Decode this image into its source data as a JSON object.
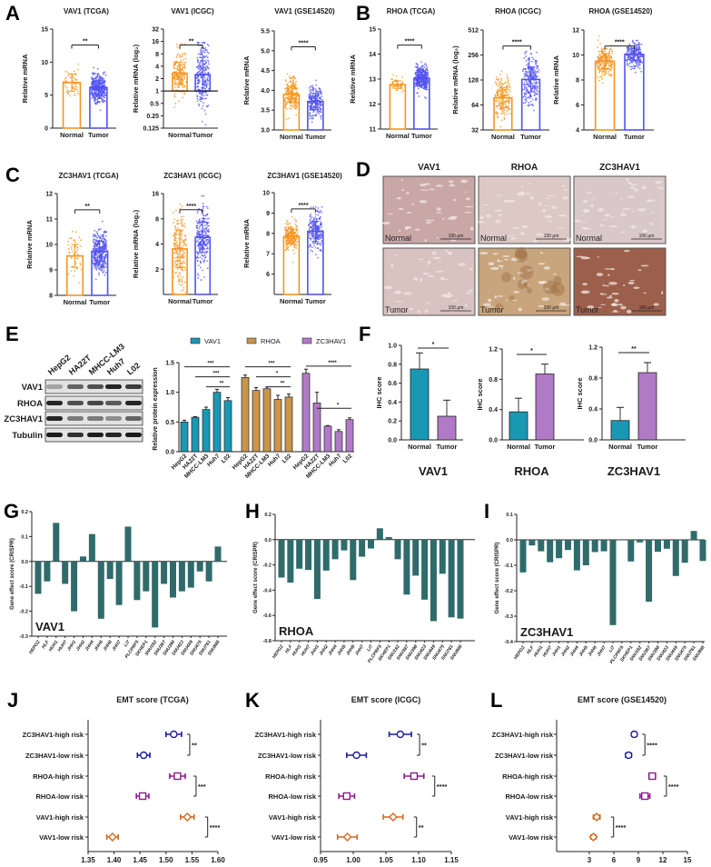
{
  "panels": {
    "A": "A",
    "B": "B",
    "C": "C",
    "D": "D",
    "E": "E",
    "F": "F",
    "G": "G",
    "H": "H",
    "I": "I",
    "J": "J",
    "K": "K",
    "L": "L"
  },
  "colors": {
    "normal": "#f7941d",
    "tumor": "#5252f2",
    "vav1": "#1a97b3",
    "rhoa": "#c8954b",
    "zc3hav1": "#b07ac6",
    "crispr": "#2f6b6b",
    "emt_zc3hav1": "#1c1c9c",
    "emt_rhoa": "#8e1b8e",
    "emt_vav1": "#d2691e"
  },
  "chart_data": [
    {
      "id": "A1",
      "type": "bar",
      "title": "VAV1 (TCGA)",
      "ylabel": "Relative mRNA",
      "scale": "linear",
      "ylim": [
        0,
        15
      ],
      "yticks": [
        "0",
        "5",
        "10",
        "15"
      ],
      "sig": "**",
      "groups": [
        {
          "label": "Normal",
          "mean": 6.9,
          "sd": 1.3,
          "range": [
            1.5,
            9.7
          ],
          "n": 50
        },
        {
          "label": "Tumor",
          "mean": 6.15,
          "sd": 1.1,
          "range": [
            2.7,
            10.5
          ],
          "n": 370
        }
      ]
    },
    {
      "id": "A2",
      "type": "bar",
      "title": "VAV1 (ICGC)",
      "ylabel": "Relative mRNA (log₂)",
      "scale": "log2",
      "ylim": [
        0.125,
        32
      ],
      "baseline": 1,
      "yticks": [
        "0.125",
        "0.25",
        "0.5",
        "1",
        "2",
        "4",
        "8",
        "16",
        "32"
      ],
      "sig": "**",
      "groups": [
        {
          "label": "Normal",
          "mean": 2.7,
          "sd": 0.9,
          "range": [
            0.35,
            14
          ],
          "n": 200
        },
        {
          "label": "Tumor",
          "mean": 2.5,
          "sd": 1.4,
          "range": [
            0.15,
            15
          ],
          "n": 240
        }
      ]
    },
    {
      "id": "A3",
      "type": "bar",
      "title": "VAV1 (GSE14520)",
      "ylabel": "Relative mRNA",
      "scale": "linear",
      "ylim": [
        3,
        5.5
      ],
      "yticks": [
        "3.0",
        "3.5",
        "4.0",
        "4.5",
        "5.0",
        "5.5"
      ],
      "sig": "****",
      "groups": [
        {
          "label": "Normal",
          "mean": 3.9,
          "sd": 0.2,
          "range": [
            3.15,
            4.7
          ],
          "n": 220
        },
        {
          "label": "Tumor",
          "mean": 3.72,
          "sd": 0.2,
          "range": [
            3.2,
            5.4
          ],
          "n": 225
        }
      ]
    },
    {
      "id": "B1",
      "type": "bar",
      "title": "RHOA (TCGA)",
      "ylabel": "Relative mRNA",
      "scale": "linear",
      "ylim": [
        11,
        15
      ],
      "yticks": [
        "11",
        "12",
        "13",
        "14",
        "15"
      ],
      "sig": "****",
      "groups": [
        {
          "label": "Normal",
          "mean": 12.78,
          "sd": 0.15,
          "range": [
            12.5,
            13.4
          ],
          "n": 50
        },
        {
          "label": "Tumor",
          "mean": 13.03,
          "sd": 0.25,
          "range": [
            11.4,
            14.3
          ],
          "n": 370
        }
      ]
    },
    {
      "id": "B2",
      "type": "bar",
      "title": "RHOA (ICGC)",
      "ylabel": "Relative mRNA (log₂)",
      "scale": "log2",
      "ylim": [
        32,
        512
      ],
      "yticks": [
        "32",
        "64",
        "128",
        "256",
        "512"
      ],
      "sig": "****",
      "groups": [
        {
          "label": "Normal",
          "mean": 78,
          "sd": 0.4,
          "range": [
            35,
            210
          ],
          "n": 200
        },
        {
          "label": "Tumor",
          "mean": 130,
          "sd": 0.5,
          "range": [
            55,
            400
          ],
          "n": 240
        }
      ]
    },
    {
      "id": "B3",
      "type": "bar",
      "title": "RHOA (GSE14520)",
      "ylabel": "Relative mRNA",
      "scale": "linear",
      "ylim": [
        4,
        12
      ],
      "yticks": [
        "4",
        "6",
        "8",
        "10",
        "12"
      ],
      "sig": "****",
      "groups": [
        {
          "label": "Normal",
          "mean": 9.5,
          "sd": 0.6,
          "range": [
            5.8,
            11.6
          ],
          "n": 220
        },
        {
          "label": "Tumor",
          "mean": 10.05,
          "sd": 0.5,
          "range": [
            6,
            11.3
          ],
          "n": 225
        }
      ]
    },
    {
      "id": "C1",
      "type": "bar",
      "title": "ZC3HAV1 (TCGA)",
      "ylabel": "Relative mRNA",
      "scale": "linear",
      "ylim": [
        8,
        12
      ],
      "yticks": [
        "8",
        "9",
        "10",
        "11",
        "12"
      ],
      "sig": "**",
      "groups": [
        {
          "label": "Normal",
          "mean": 9.55,
          "sd": 0.45,
          "range": [
            8.5,
            10.7
          ],
          "n": 50
        },
        {
          "label": "Tumor",
          "mean": 9.73,
          "sd": 0.4,
          "range": [
            8.3,
            11.1
          ],
          "n": 370
        }
      ]
    },
    {
      "id": "C2",
      "type": "bar",
      "title": "ZC3HAV1 (ICGC)",
      "ylabel": "Relative mRNA (log₂)",
      "scale": "log2",
      "ylim": [
        1,
        16
      ],
      "yticks": [
        "2",
        "4",
        "8",
        "16"
      ],
      "sig": "****",
      "groups": [
        {
          "label": "Normal",
          "mean": 3.5,
          "sd": 0.75,
          "range": [
            1,
            12
          ],
          "n": 200
        },
        {
          "label": "Tumor",
          "mean": 4.8,
          "sd": 0.6,
          "range": [
            1,
            15
          ],
          "n": 240
        }
      ]
    },
    {
      "id": "C3",
      "type": "bar",
      "title": "ZC3HAV1 (GSE14520)",
      "ylabel": "Relative mRNA",
      "scale": "linear",
      "ylim": [
        5,
        10
      ],
      "yticks": [
        "6",
        "7",
        "8",
        "9",
        "10"
      ],
      "sig": "****",
      "groups": [
        {
          "label": "Normal",
          "mean": 7.85,
          "sd": 0.35,
          "range": [
            6.4,
            8.8
          ],
          "n": 220
        },
        {
          "label": "Tumor",
          "mean": 8.1,
          "sd": 0.5,
          "range": [
            6,
            9.3
          ],
          "n": 225
        }
      ]
    },
    {
      "id": "E",
      "type": "bar",
      "ylabel": "Relative protein expression",
      "ylim": [
        0,
        1.5
      ],
      "yticks": [
        "0.0",
        "0.5",
        "1.0",
        "1.5"
      ],
      "categories": [
        "HepG2",
        "HA22T",
        "MHCC-LM3",
        "Huh7",
        "L02"
      ],
      "series": [
        {
          "name": "VAV1",
          "values": [
            0.5,
            0.58,
            0.71,
            1.0,
            0.86
          ],
          "errors": [
            0.03,
            0.01,
            0.04,
            0.05,
            0.05
          ],
          "sig": [
            {
              "from": 0,
              "to": 4,
              "label": "***"
            },
            {
              "from": 1,
              "to": 4,
              "label": "***"
            },
            {
              "from": 2,
              "to": 4,
              "label": "**"
            }
          ]
        },
        {
          "name": "RHOA",
          "values": [
            1.25,
            1.03,
            1.06,
            0.88,
            0.92
          ],
          "errors": [
            0.04,
            0.05,
            0.03,
            0.07,
            0.05
          ],
          "sig": [
            {
              "from": 0,
              "to": 4,
              "label": "***"
            },
            {
              "from": 1,
              "to": 4,
              "label": "*"
            },
            {
              "from": 2,
              "to": 4,
              "label": "**"
            }
          ]
        },
        {
          "name": "ZC3HAV1",
          "values": [
            1.32,
            0.82,
            0.43,
            0.34,
            0.54
          ],
          "errors": [
            0.07,
            0.18,
            0.01,
            0.03,
            0.03
          ],
          "sig": [
            {
              "from": 0,
              "to": 4,
              "label": "****"
            },
            {
              "from": 1,
              "to": 4,
              "label": "*"
            }
          ]
        }
      ]
    },
    {
      "id": "F",
      "type": "bar",
      "ylabel": "IHC score",
      "categories": [
        "Normal",
        "Tumor"
      ],
      "charts": [
        {
          "gene": "VAV1",
          "values": [
            0.75,
            0.25
          ],
          "errors": [
            0.17,
            0.17
          ],
          "ylim": [
            0,
            1.0
          ],
          "yticks": [
            "0.0",
            "0.2",
            "0.4",
            "0.6",
            "0.8",
            "1.0"
          ],
          "sig": "*"
        },
        {
          "gene": "RHOA",
          "values": [
            0.37,
            0.87
          ],
          "errors": [
            0.18,
            0.13
          ],
          "ylim": [
            0,
            1.2
          ],
          "yticks": [
            "0.0",
            "0.4",
            "0.8",
            "1.2"
          ],
          "sig": "*"
        },
        {
          "gene": "ZC3HAV1",
          "values": [
            0.25,
            0.87
          ],
          "errors": [
            0.17,
            0.13
          ],
          "ylim": [
            0,
            1.2
          ],
          "yticks": [
            "0.0",
            "0.4",
            "0.8",
            "1.2"
          ],
          "sig": "**"
        }
      ]
    },
    {
      "id": "GHI",
      "type": "bar",
      "ylabel": "Gene effect score (CRISPR)",
      "categories": [
        "HEPG2",
        "HLF",
        "HUH1",
        "HUH7",
        "JHH1",
        "JHH2",
        "JHH4",
        "JHH5",
        "JHH6",
        "JHH7",
        "LI7",
        "PLCPRF5",
        "SKHEP1",
        "SNU182",
        "SNU387",
        "SNU398",
        "SNU423",
        "SNU449",
        "SNU475",
        "SNU761",
        "SNU886"
      ],
      "charts": [
        {
          "gene": "VAV1",
          "ylim": [
            -0.3,
            0.2
          ],
          "yticks": [
            "-0.3",
            "-0.2",
            "-0.1",
            "0.0",
            "0.1",
            "0.2"
          ],
          "values": [
            -0.13,
            -0.08,
            0.155,
            -0.09,
            -0.2,
            0.02,
            0.11,
            -0.23,
            -0.07,
            -0.175,
            0.14,
            -0.155,
            -0.12,
            -0.265,
            -0.09,
            -0.145,
            -0.12,
            -0.105,
            -0.04,
            -0.08,
            0.06
          ]
        },
        {
          "gene": "RHOA",
          "ylim": [
            -0.8,
            0.2
          ],
          "yticks": [
            "-0.8",
            "-0.6",
            "-0.4",
            "-0.2",
            "0.0",
            "0.2"
          ],
          "values": [
            -0.3,
            -0.34,
            -0.23,
            -0.24,
            -0.47,
            -0.245,
            -0.155,
            -0.085,
            -0.32,
            -0.135,
            -0.07,
            0.09,
            0.02,
            -0.155,
            -0.435,
            -0.285,
            -0.475,
            -0.645,
            -0.27,
            -0.615,
            -0.625
          ]
        },
        {
          "gene": "ZC3HAV1",
          "ylim": [
            -0.4,
            0.1
          ],
          "yticks": [
            "-0.4",
            "-0.3",
            "-0.2",
            "-0.1",
            "0.0",
            "0.1"
          ],
          "values": [
            -0.128,
            -0.022,
            -0.045,
            -0.088,
            -0.072,
            -0.04,
            -0.12,
            -0.1,
            -0.048,
            -0.045,
            -0.335,
            -0.002,
            -0.085,
            -0.01,
            -0.243,
            -0.047,
            -0.035,
            -0.142,
            -0.09,
            0.035,
            -0.083
          ]
        }
      ]
    },
    {
      "id": "JKL",
      "type": "scatter",
      "categories": [
        "ZC3HAV1-high risk",
        "ZC3HAV1-low risk",
        "RHOA-high risk",
        "RHOA-low risk",
        "VAV1-high risk",
        "VAV1-low risk"
      ],
      "markers": [
        "circle",
        "circle",
        "square",
        "square",
        "diamond",
        "diamond"
      ],
      "series_colors": [
        "emt_zc3hav1",
        "emt_zc3hav1",
        "emt_rhoa",
        "emt_rhoa",
        "emt_vav1",
        "emt_vav1"
      ],
      "charts": [
        {
          "title": "EMT score (TCGA)",
          "xlim": [
            1.35,
            1.6
          ],
          "xticks": [
            "1.35",
            "1.40",
            "1.45",
            "1.50",
            "1.55",
            "1.60"
          ],
          "means": [
            1.515,
            1.457,
            1.522,
            1.455,
            1.541,
            1.397
          ],
          "errors": [
            0.015,
            0.012,
            0.015,
            0.012,
            0.013,
            0.011
          ],
          "sig": [
            "**",
            "***",
            "****"
          ]
        },
        {
          "title": "EMT score (ICGC)",
          "xlim": [
            0.95,
            1.15
          ],
          "xticks": [
            "0.95",
            "1.00",
            "1.05",
            "1.10",
            "1.15"
          ],
          "means": [
            1.072,
            1.005,
            1.093,
            0.99,
            1.061,
            0.991
          ],
          "errors": [
            0.017,
            0.015,
            0.015,
            0.012,
            0.015,
            0.015
          ],
          "sig": [
            "**",
            "****",
            "**"
          ]
        },
        {
          "title": "EMT score (GSE14520)",
          "xlim": [
            -1,
            15
          ],
          "xticks": [
            "3",
            "6",
            "9",
            "12",
            "15"
          ],
          "means": [
            8.5,
            7.8,
            10.7,
            9.8,
            3.9,
            3.5
          ],
          "errors": [
            0.3,
            0.35,
            0.4,
            0.6,
            0.4,
            0.3
          ],
          "sig": [
            "****",
            "****",
            "****"
          ]
        }
      ]
    }
  ],
  "ihc": {
    "genes": [
      "VAV1",
      "RHOA",
      "ZC3HAV1"
    ],
    "rows": [
      "Normal",
      "Tumor"
    ],
    "scale_bar": "100 μm",
    "tones": [
      [
        "#c9a7a6",
        "#dcc9c6",
        "#d9c8ca"
      ],
      [
        "#d8c3c1",
        "#c9a57e",
        "#9c5f4c"
      ]
    ]
  },
  "blot": {
    "lanes": [
      "HepG2",
      "HA22T",
      "MHCC-LM3",
      "Huh7",
      "L02"
    ],
    "rows": [
      {
        "label": "VAV1",
        "intensity": [
          0.3,
          0.6,
          0.7,
          0.9,
          0.8
        ]
      },
      {
        "label": "RHOA",
        "intensity": [
          0.9,
          0.7,
          0.75,
          0.65,
          0.9
        ]
      },
      {
        "label": "ZC3HAV1",
        "intensity": [
          0.9,
          0.5,
          0.5,
          0.4,
          0.6
        ]
      },
      {
        "label": "Tubulin",
        "intensity": [
          0.95,
          0.85,
          0.95,
          0.9,
          0.95
        ]
      }
    ]
  }
}
